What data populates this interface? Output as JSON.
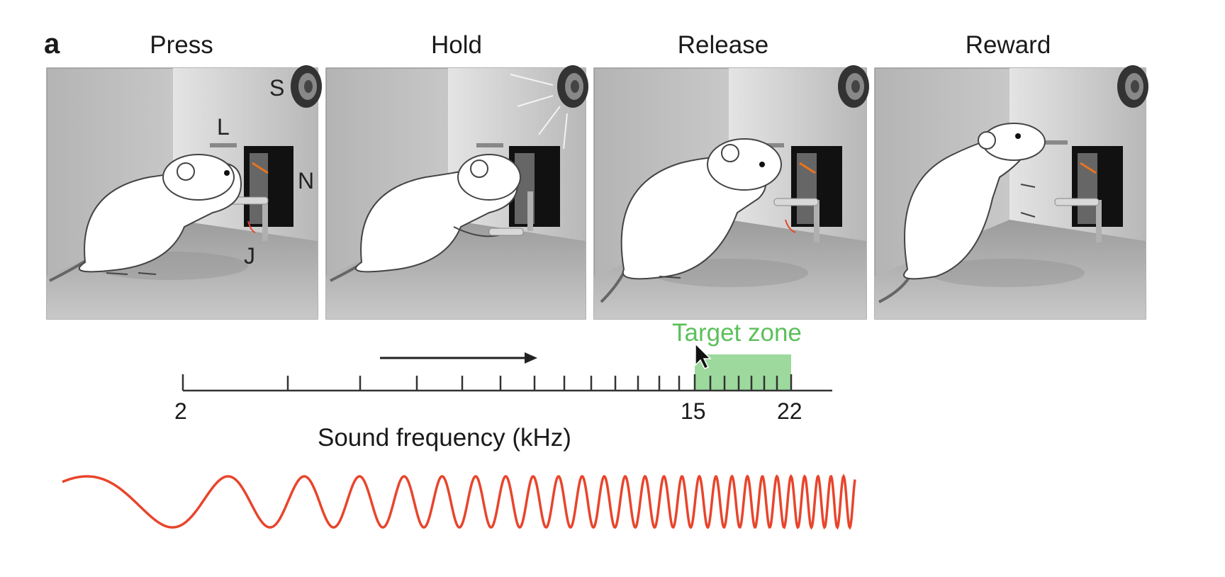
{
  "figure": {
    "panel_letter": "a",
    "stages": [
      {
        "title": "Press",
        "icon": "rat-press-lever-icon"
      },
      {
        "title": "Hold",
        "icon": "rat-hold-lever-icon"
      },
      {
        "title": "Release",
        "icon": "rat-release-lever-icon"
      },
      {
        "title": "Reward",
        "icon": "rat-drink-reward-icon"
      }
    ],
    "apparatus_labels": {
      "speaker": "S",
      "lick_port": "L",
      "nose_poke": "N",
      "joystick": "J"
    },
    "scale": {
      "start_tick": "2",
      "target_start_tick": "15",
      "target_end_tick": "22",
      "axis_label": "Sound frequency (kHz)",
      "target_label": "Target zone",
      "target_color": "#5cc05c",
      "sweep_color": "#e8452c",
      "arrow_icon": "right-arrow-icon"
    },
    "cursor_icon": "mouse-pointer-icon"
  }
}
